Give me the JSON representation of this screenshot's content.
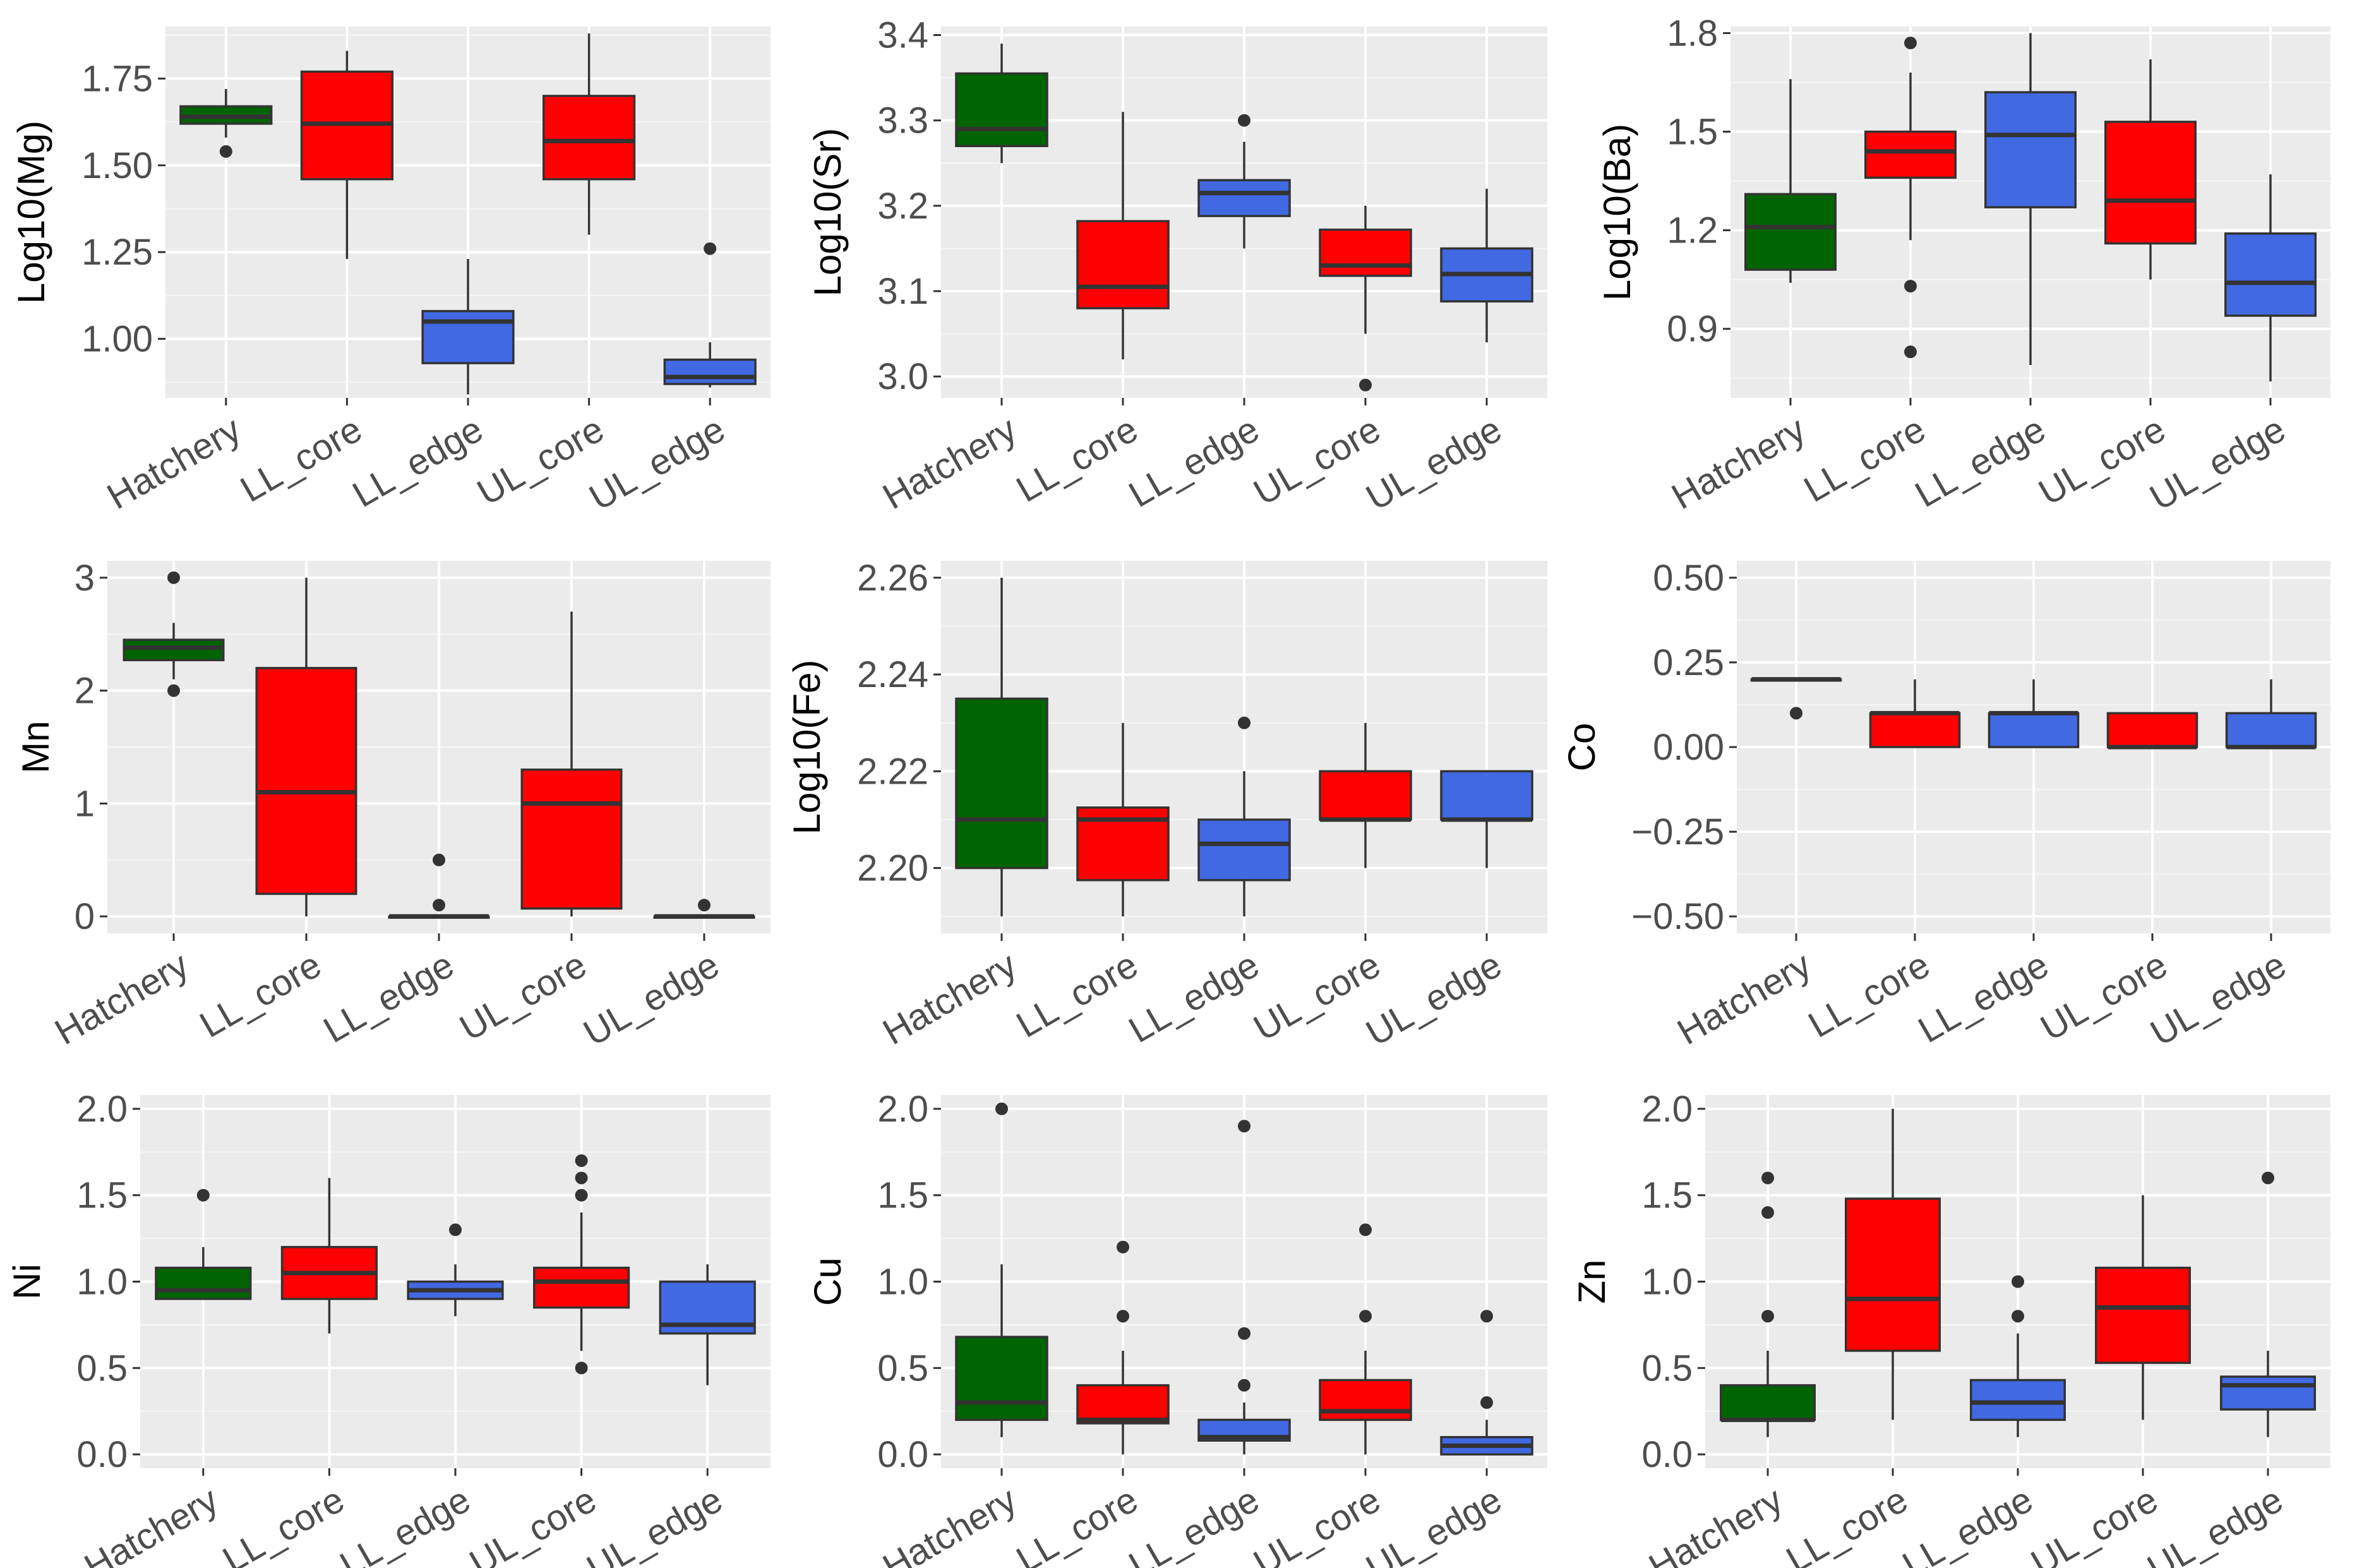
{
  "colors": {
    "Hatchery": "#006400",
    "LL_core": "#ff0000",
    "LL_edge": "#4169e1",
    "UL_core": "#ff0000",
    "UL_edge": "#4169e1"
  },
  "chart_data": [
    {
      "type": "box",
      "ylabel": "Log10(Mg)",
      "ylim": [
        0.83,
        1.9
      ],
      "yticks": [
        1.0,
        1.25,
        1.5,
        1.75
      ],
      "ytick_labels": [
        "1.00",
        "1.25",
        "1.50",
        "1.75"
      ],
      "categories": [
        "Hatchery",
        "LL_core",
        "LL_edge",
        "UL_core",
        "UL_edge"
      ],
      "boxes": [
        {
          "low": 1.58,
          "q1": 1.62,
          "median": 1.64,
          "q3": 1.67,
          "high": 1.72,
          "outliers": [
            1.54
          ]
        },
        {
          "low": 1.23,
          "q1": 1.46,
          "median": 1.62,
          "q3": 1.77,
          "high": 1.83,
          "outliers": []
        },
        {
          "low": 0.84,
          "q1": 0.93,
          "median": 1.05,
          "q3": 1.08,
          "high": 1.23,
          "outliers": []
        },
        {
          "low": 1.3,
          "q1": 1.46,
          "median": 1.57,
          "q3": 1.7,
          "high": 1.88,
          "outliers": []
        },
        {
          "low": 0.86,
          "q1": 0.87,
          "median": 0.89,
          "q3": 0.94,
          "high": 0.99,
          "outliers": [
            1.26
          ]
        }
      ]
    },
    {
      "type": "box",
      "ylabel": "Log10(Sr)",
      "ylim": [
        2.975,
        3.41
      ],
      "yticks": [
        3.0,
        3.1,
        3.2,
        3.3,
        3.4
      ],
      "ytick_labels": [
        "3.0",
        "3.1",
        "3.2",
        "3.3",
        "3.4"
      ],
      "categories": [
        "Hatchery",
        "LL_core",
        "LL_edge",
        "UL_core",
        "UL_edge"
      ],
      "boxes": [
        {
          "low": 3.25,
          "q1": 3.27,
          "median": 3.29,
          "q3": 3.355,
          "high": 3.39,
          "outliers": []
        },
        {
          "low": 3.02,
          "q1": 3.08,
          "median": 3.105,
          "q3": 3.182,
          "high": 3.31,
          "outliers": []
        },
        {
          "low": 3.15,
          "q1": 3.188,
          "median": 3.215,
          "q3": 3.23,
          "high": 3.275,
          "outliers": [
            3.3
          ]
        },
        {
          "low": 3.05,
          "q1": 3.118,
          "median": 3.13,
          "q3": 3.172,
          "high": 3.2,
          "outliers": [
            2.99
          ]
        },
        {
          "low": 3.04,
          "q1": 3.088,
          "median": 3.12,
          "q3": 3.15,
          "high": 3.22,
          "outliers": []
        }
      ]
    },
    {
      "type": "box",
      "ylabel": "Log10(Ba)",
      "ylim": [
        0.69,
        1.82
      ],
      "yticks": [
        0.9,
        1.2,
        1.5,
        1.8
      ],
      "ytick_labels": [
        "0.9",
        "1.2",
        "1.5",
        "1.8"
      ],
      "categories": [
        "Hatchery",
        "LL_core",
        "LL_edge",
        "UL_core",
        "UL_edge"
      ],
      "boxes": [
        {
          "low": 1.04,
          "q1": 1.08,
          "median": 1.21,
          "q3": 1.31,
          "high": 1.66,
          "outliers": []
        },
        {
          "low": 1.17,
          "q1": 1.36,
          "median": 1.44,
          "q3": 1.5,
          "high": 1.68,
          "outliers": [
            1.77,
            1.03,
            0.83
          ]
        },
        {
          "low": 0.79,
          "q1": 1.27,
          "median": 1.49,
          "q3": 1.62,
          "high": 1.8,
          "outliers": []
        },
        {
          "low": 1.05,
          "q1": 1.16,
          "median": 1.29,
          "q3": 1.53,
          "high": 1.72,
          "outliers": []
        },
        {
          "low": 0.74,
          "q1": 0.94,
          "median": 1.04,
          "q3": 1.19,
          "high": 1.37,
          "outliers": []
        }
      ]
    },
    {
      "type": "box",
      "ylabel": "Mn",
      "ylim": [
        -0.15,
        3.15
      ],
      "yticks": [
        0,
        1,
        2,
        3
      ],
      "ytick_labels": [
        "0",
        "1",
        "2",
        "3"
      ],
      "categories": [
        "Hatchery",
        "LL_core",
        "LL_edge",
        "UL_core",
        "UL_edge"
      ],
      "boxes": [
        {
          "low": 2.1,
          "q1": 2.27,
          "median": 2.38,
          "q3": 2.45,
          "high": 2.6,
          "outliers": [
            3.0,
            2.0
          ]
        },
        {
          "low": 0.0,
          "q1": 0.2,
          "median": 1.1,
          "q3": 2.2,
          "high": 3.0,
          "outliers": []
        },
        {
          "low": 0.0,
          "q1": 0.0,
          "median": 0.0,
          "q3": 0.0,
          "high": 0.0,
          "outliers": [
            0.5,
            0.1
          ]
        },
        {
          "low": 0.0,
          "q1": 0.07,
          "median": 1.0,
          "q3": 1.3,
          "high": 2.7,
          "outliers": []
        },
        {
          "low": 0.0,
          "q1": 0.0,
          "median": 0.0,
          "q3": 0.0,
          "high": 0.0,
          "outliers": [
            0.1
          ]
        }
      ]
    },
    {
      "type": "box",
      "ylabel": "Log10(Fe)",
      "ylim": [
        2.1865,
        2.2635
      ],
      "yticks": [
        2.2,
        2.22,
        2.24,
        2.26
      ],
      "ytick_labels": [
        "2.20",
        "2.22",
        "2.24",
        "2.26"
      ],
      "categories": [
        "Hatchery",
        "LL_core",
        "LL_edge",
        "UL_core",
        "UL_edge"
      ],
      "boxes": [
        {
          "low": 2.19,
          "q1": 2.2,
          "median": 2.21,
          "q3": 2.235,
          "high": 2.26,
          "outliers": []
        },
        {
          "low": 2.19,
          "q1": 2.1975,
          "median": 2.21,
          "q3": 2.2125,
          "high": 2.23,
          "outliers": []
        },
        {
          "low": 2.19,
          "q1": 2.1975,
          "median": 2.205,
          "q3": 2.21,
          "high": 2.22,
          "outliers": [
            2.23
          ]
        },
        {
          "low": 2.2,
          "q1": 2.21,
          "median": 2.21,
          "q3": 2.22,
          "high": 2.23,
          "outliers": []
        },
        {
          "low": 2.2,
          "q1": 2.21,
          "median": 2.21,
          "q3": 2.22,
          "high": 2.22,
          "outliers": []
        }
      ]
    },
    {
      "type": "box",
      "ylabel": "Co",
      "ylim": [
        -0.55,
        0.55
      ],
      "yticks": [
        -0.5,
        -0.25,
        0.0,
        0.25,
        0.5
      ],
      "ytick_labels": [
        "−0.50",
        "−0.25",
        "0.00",
        "0.25",
        "0.50"
      ],
      "categories": [
        "Hatchery",
        "LL_core",
        "LL_edge",
        "UL_core",
        "UL_edge"
      ],
      "boxes": [
        {
          "low": 0.2,
          "q1": 0.2,
          "median": 0.2,
          "q3": 0.2,
          "high": 0.2,
          "outliers": [
            0.1
          ]
        },
        {
          "low": 0.0,
          "q1": 0.0,
          "median": 0.1,
          "q3": 0.1,
          "high": 0.2,
          "outliers": []
        },
        {
          "low": 0.0,
          "q1": 0.0,
          "median": 0.1,
          "q3": 0.1,
          "high": 0.2,
          "outliers": []
        },
        {
          "low": 0.0,
          "q1": 0.0,
          "median": 0.0,
          "q3": 0.1,
          "high": 0.1,
          "outliers": []
        },
        {
          "low": 0.0,
          "q1": 0.0,
          "median": 0.0,
          "q3": 0.1,
          "high": 0.2,
          "outliers": []
        }
      ]
    },
    {
      "type": "box",
      "ylabel": "Ni",
      "ylim": [
        -0.08,
        2.08
      ],
      "yticks": [
        0.0,
        0.5,
        1.0,
        1.5,
        2.0
      ],
      "ytick_labels": [
        "0.0",
        "0.5",
        "1.0",
        "1.5",
        "2.0"
      ],
      "categories": [
        "Hatchery",
        "LL_core",
        "LL_edge",
        "UL_core",
        "UL_edge"
      ],
      "boxes": [
        {
          "low": 0.9,
          "q1": 0.9,
          "median": 0.95,
          "q3": 1.08,
          "high": 1.2,
          "outliers": [
            1.5
          ]
        },
        {
          "low": 0.7,
          "q1": 0.9,
          "median": 1.05,
          "q3": 1.2,
          "high": 1.6,
          "outliers": []
        },
        {
          "low": 0.8,
          "q1": 0.9,
          "median": 0.95,
          "q3": 1.0,
          "high": 1.1,
          "outliers": [
            1.3
          ]
        },
        {
          "low": 0.6,
          "q1": 0.85,
          "median": 1.0,
          "q3": 1.08,
          "high": 1.4,
          "outliers": [
            1.7,
            1.6,
            1.5,
            0.5
          ]
        },
        {
          "low": 0.4,
          "q1": 0.7,
          "median": 0.75,
          "q3": 1.0,
          "high": 1.1,
          "outliers": []
        }
      ]
    },
    {
      "type": "box",
      "ylabel": "Cu",
      "ylim": [
        -0.08,
        2.08
      ],
      "yticks": [
        0.0,
        0.5,
        1.0,
        1.5,
        2.0
      ],
      "ytick_labels": [
        "0.0",
        "0.5",
        "1.0",
        "1.5",
        "2.0"
      ],
      "categories": [
        "Hatchery",
        "LL_core",
        "LL_edge",
        "UL_core",
        "UL_edge"
      ],
      "boxes": [
        {
          "low": 0.1,
          "q1": 0.2,
          "median": 0.3,
          "q3": 0.68,
          "high": 1.1,
          "outliers": [
            2.0
          ]
        },
        {
          "low": 0.0,
          "q1": 0.18,
          "median": 0.2,
          "q3": 0.4,
          "high": 0.6,
          "outliers": [
            1.2,
            0.8
          ]
        },
        {
          "low": 0.0,
          "q1": 0.08,
          "median": 0.1,
          "q3": 0.2,
          "high": 0.3,
          "outliers": [
            1.9,
            0.7,
            0.4
          ]
        },
        {
          "low": 0.0,
          "q1": 0.2,
          "median": 0.25,
          "q3": 0.43,
          "high": 0.6,
          "outliers": [
            1.3,
            0.8
          ]
        },
        {
          "low": 0.0,
          "q1": 0.0,
          "median": 0.05,
          "q3": 0.1,
          "high": 0.2,
          "outliers": [
            0.8,
            0.3
          ]
        }
      ]
    },
    {
      "type": "box",
      "ylabel": "Zn",
      "ylim": [
        -0.08,
        2.08
      ],
      "yticks": [
        0.0,
        0.5,
        1.0,
        1.5,
        2.0
      ],
      "ytick_labels": [
        "0.0",
        "0.5",
        "1.0",
        "1.5",
        "2.0"
      ],
      "categories": [
        "Hatchery",
        "LL_core",
        "LL_edge",
        "UL_core",
        "UL_edge"
      ],
      "boxes": [
        {
          "low": 0.1,
          "q1": 0.2,
          "median": 0.2,
          "q3": 0.4,
          "high": 0.6,
          "outliers": [
            1.6,
            1.4,
            0.8
          ]
        },
        {
          "low": 0.2,
          "q1": 0.6,
          "median": 0.9,
          "q3": 1.48,
          "high": 2.0,
          "outliers": []
        },
        {
          "low": 0.1,
          "q1": 0.2,
          "median": 0.3,
          "q3": 0.43,
          "high": 0.7,
          "outliers": [
            1.0,
            0.8
          ]
        },
        {
          "low": 0.2,
          "q1": 0.53,
          "median": 0.85,
          "q3": 1.08,
          "high": 1.5,
          "outliers": []
        },
        {
          "low": 0.1,
          "q1": 0.26,
          "median": 0.4,
          "q3": 0.45,
          "high": 0.6,
          "outliers": [
            1.6
          ]
        }
      ]
    }
  ]
}
